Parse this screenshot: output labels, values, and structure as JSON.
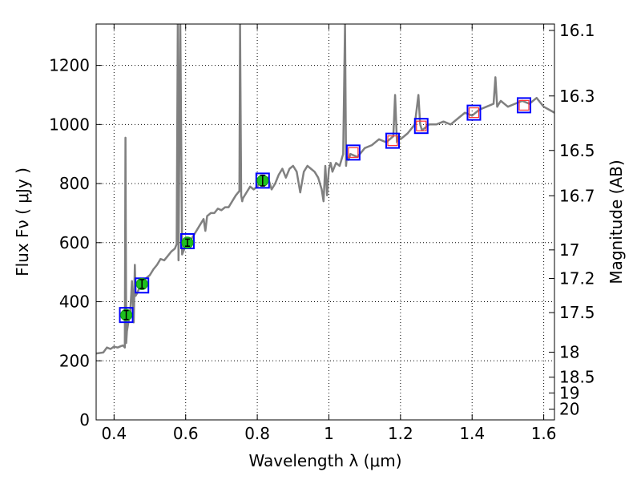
{
  "chart_data": {
    "type": "line",
    "xlabel": "Wavelength  λ (μm)",
    "ylabel": "Flux  Fν  ( μJy )",
    "y2label": "Magnitude (AB)",
    "xlim": [
      0.35,
      1.63
    ],
    "ylim": [
      0,
      1340
    ],
    "x_ticks": [
      0.4,
      0.6,
      0.8,
      1.0,
      1.2,
      1.4,
      1.6
    ],
    "x_tick_labels": [
      "0.4",
      "0.6",
      "0.8",
      "1",
      "1.2",
      "1.4",
      "1.6"
    ],
    "y_ticks": [
      0,
      200,
      400,
      600,
      800,
      1000,
      1200
    ],
    "y_tick_labels": [
      "0",
      "200",
      "400",
      "600",
      "800",
      "1000",
      "1200"
    ],
    "y2_tick_labels": [
      "16.1",
      "16.3",
      "16.5",
      "16.7",
      "17",
      "17.2",
      "17.5",
      "18",
      "18.5",
      "19",
      "20"
    ],
    "grid": true,
    "colors": {
      "spectrum": "#808080",
      "photometry_points": "#1ec01e",
      "model_box": "#0000ff",
      "model_box_ir": "#ff3333",
      "errorbar": "#000000"
    },
    "series": [
      {
        "kind": "spectrum",
        "x": [
          0.35,
          0.37,
          0.38,
          0.39,
          0.4,
          0.41,
          0.42,
          0.425,
          0.43,
          0.432,
          0.434,
          0.436,
          0.44,
          0.445,
          0.45,
          0.455,
          0.458,
          0.46,
          0.465,
          0.47,
          0.475,
          0.48,
          0.49,
          0.5,
          0.51,
          0.52,
          0.53,
          0.54,
          0.55,
          0.56,
          0.57,
          0.575,
          0.578,
          0.58,
          0.585,
          0.59,
          0.6,
          0.61,
          0.62,
          0.63,
          0.64,
          0.65,
          0.655,
          0.66,
          0.665,
          0.67,
          0.68,
          0.69,
          0.7,
          0.71,
          0.72,
          0.73,
          0.74,
          0.75,
          0.752,
          0.755,
          0.758,
          0.76,
          0.77,
          0.78,
          0.79,
          0.8,
          0.81,
          0.82,
          0.83,
          0.84,
          0.85,
          0.86,
          0.87,
          0.88,
          0.89,
          0.9,
          0.91,
          0.92,
          0.93,
          0.94,
          0.95,
          0.96,
          0.97,
          0.98,
          0.985,
          0.99,
          0.995,
          1.0,
          1.005,
          1.01,
          1.02,
          1.03,
          1.04,
          1.045,
          1.048,
          1.05,
          1.055,
          1.06,
          1.08,
          1.1,
          1.12,
          1.14,
          1.16,
          1.18,
          1.185,
          1.19,
          1.195,
          1.2,
          1.22,
          1.24,
          1.25,
          1.255,
          1.26,
          1.27,
          1.28,
          1.3,
          1.32,
          1.34,
          1.36,
          1.38,
          1.4,
          1.42,
          1.44,
          1.46,
          1.465,
          1.47,
          1.475,
          1.48,
          1.5,
          1.52,
          1.54,
          1.56,
          1.58,
          1.6,
          1.63
        ],
        "y": [
          225,
          228,
          245,
          240,
          248,
          245,
          250,
          252,
          245,
          955,
          260,
          300,
          330,
          360,
          470,
          330,
          525,
          420,
          430,
          445,
          460,
          470,
          480,
          490,
          510,
          525,
          545,
          540,
          555,
          570,
          580,
          595,
          1340,
          540,
          1340,
          560,
          590,
          600,
          620,
          640,
          660,
          680,
          640,
          690,
          695,
          700,
          700,
          715,
          710,
          720,
          720,
          740,
          760,
          775,
          1340,
          760,
          740,
          750,
          770,
          790,
          780,
          790,
          810,
          800,
          820,
          780,
          800,
          830,
          850,
          820,
          850,
          860,
          840,
          770,
          840,
          860,
          850,
          840,
          820,
          780,
          740,
          860,
          760,
          850,
          870,
          840,
          870,
          860,
          900,
          1340,
          860,
          890,
          880,
          900,
          890,
          920,
          930,
          950,
          940,
          960,
          1100,
          940,
          960,
          950,
          970,
          1000,
          1100,
          1000,
          980,
          990,
          1000,
          1000,
          1010,
          1000,
          1020,
          1040,
          1030,
          1050,
          1060,
          1070,
          1160,
          1060,
          1070,
          1080,
          1060,
          1070,
          1080,
          1070,
          1090,
          1060,
          1040
        ]
      },
      {
        "kind": "photometry",
        "x": [
          0.434,
          0.478,
          0.605,
          0.815
        ],
        "y": [
          355,
          460,
          600,
          810
        ],
        "yerr": [
          15,
          15,
          12,
          18
        ]
      },
      {
        "kind": "model_boxes",
        "x": [
          0.434,
          0.478,
          0.605,
          0.815,
          1.068,
          1.178,
          1.258,
          1.405,
          1.545
        ],
        "y": [
          355,
          455,
          605,
          810,
          905,
          945,
          995,
          1040,
          1065
        ]
      }
    ]
  }
}
